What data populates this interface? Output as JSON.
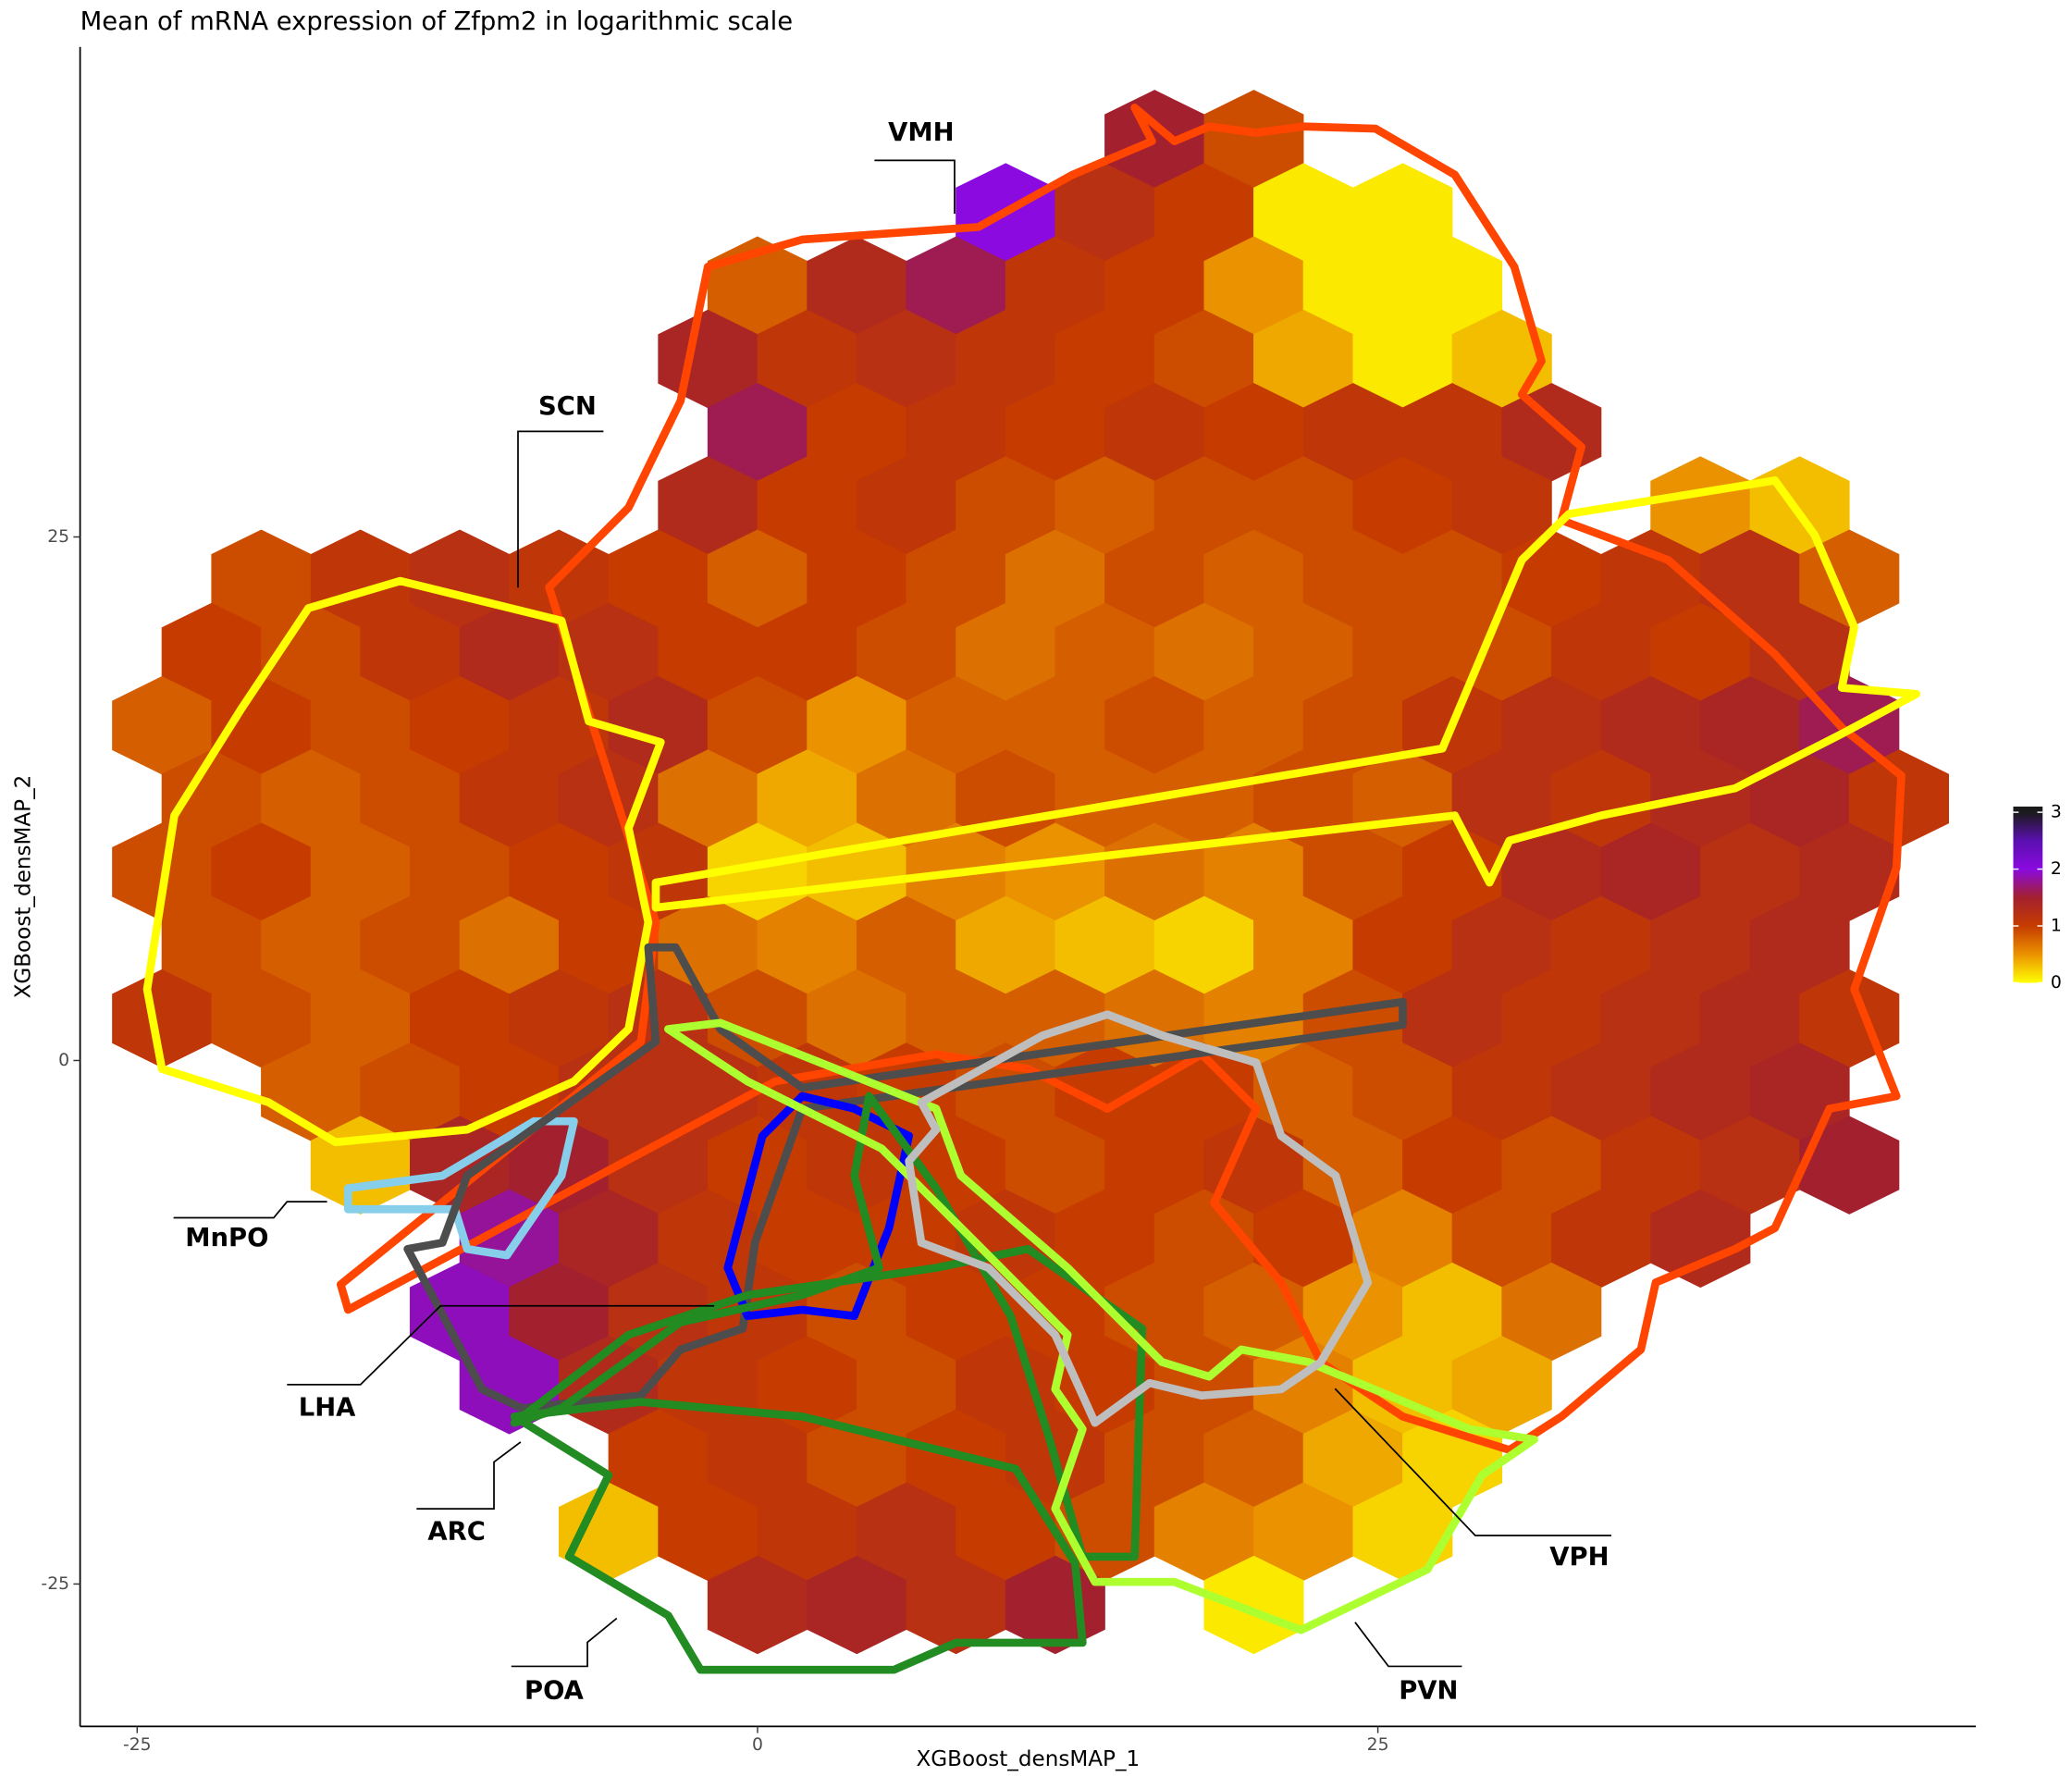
{
  "chart_data": {
    "type": "hexbin",
    "title": "Mean of mRNA expression of Zfpm2 in logarithmic scale",
    "x_label": "XGBoost_densMAP_1",
    "y_label": "XGBoost_densMAP_2",
    "xlim": [
      -27.3,
      49.1
    ],
    "ylim": [
      -31.8,
      48.4
    ],
    "xticks": [
      -25,
      0,
      25
    ],
    "yticks": [
      -25,
      0,
      25
    ],
    "colorscale": [
      [
        0,
        "#ffff00"
      ],
      [
        0.5,
        "#eb9200"
      ],
      [
        1,
        "#c63c00"
      ],
      [
        1.5,
        "#a3202e"
      ],
      [
        2,
        "#8a0ae0"
      ],
      [
        2.5,
        "#5a10b0"
      ],
      [
        3,
        "#1a1a1a"
      ]
    ],
    "colorbar_lim": [
      0,
      3.1
    ],
    "colorbar_ticks": [
      0,
      1,
      2,
      3
    ],
    "rows": [
      {
        "y": 44,
        "x": [
          16,
          20
        ],
        "values": [
          1.5,
          0.9
        ]
      },
      {
        "y": 40.5,
        "x": [
          10,
          14,
          18,
          22,
          26
        ],
        "values": [
          2.0,
          1.2,
          1.0,
          0.1,
          0.1
        ]
      },
      {
        "y": 37,
        "x": [
          0,
          4,
          8,
          12,
          16,
          20,
          24,
          28
        ],
        "values": [
          0.8,
          1.3,
          1.6,
          1.1,
          1.0,
          0.5,
          0.1,
          0.1
        ]
      },
      {
        "y": 33.5,
        "x": [
          -2,
          2,
          6,
          10,
          14,
          18,
          22,
          26,
          30
        ],
        "values": [
          1.4,
          1.1,
          1.2,
          1.1,
          1.0,
          0.9,
          0.4,
          0.1,
          0.3
        ]
      },
      {
        "y": 30,
        "x": [
          0,
          4,
          8,
          12,
          16,
          20,
          24,
          28,
          32
        ],
        "values": [
          1.6,
          1.0,
          1.1,
          1.0,
          1.1,
          1.0,
          1.1,
          1.1,
          1.3
        ]
      },
      {
        "y": 26.5,
        "x": [
          -2,
          2,
          6,
          10,
          14,
          18,
          22,
          26,
          30,
          38,
          42
        ],
        "values": [
          1.3,
          1.0,
          1.1,
          0.9,
          0.8,
          0.9,
          0.9,
          1.0,
          1.1,
          0.5,
          0.3
        ]
      },
      {
        "y": 23,
        "x": [
          -20,
          -16,
          -12,
          -8,
          -4,
          0,
          4,
          8,
          12,
          16,
          20,
          24,
          28,
          32,
          36,
          40,
          44
        ],
        "values": [
          0.9,
          1.1,
          1.2,
          1.1,
          1.0,
          0.8,
          1.0,
          0.9,
          0.7,
          0.9,
          0.8,
          0.9,
          0.9,
          1.0,
          1.1,
          1.2,
          0.8
        ]
      },
      {
        "y": 19.5,
        "x": [
          -22,
          -18,
          -14,
          -10,
          -6,
          -2,
          2,
          6,
          10,
          14,
          18,
          22,
          26,
          30,
          34,
          38,
          42
        ],
        "values": [
          1.0,
          0.9,
          1.1,
          1.3,
          1.2,
          1.0,
          1.0,
          0.9,
          0.7,
          0.8,
          0.7,
          0.8,
          0.9,
          0.9,
          1.1,
          1.0,
          1.2
        ]
      },
      {
        "y": 16,
        "x": [
          -24,
          -20,
          -16,
          -12,
          -8,
          -4,
          0,
          4,
          8,
          12,
          16,
          20,
          24,
          28,
          32,
          36,
          40,
          44
        ],
        "values": [
          0.8,
          1.0,
          0.9,
          1.0,
          1.1,
          1.3,
          0.9,
          0.5,
          0.8,
          0.8,
          0.9,
          0.8,
          0.9,
          1.1,
          1.2,
          1.3,
          1.4,
          1.6
        ]
      },
      {
        "y": 12.5,
        "x": [
          -22,
          -18,
          -14,
          -10,
          -6,
          -2,
          2,
          6,
          10,
          14,
          18,
          22,
          26,
          30,
          34,
          38,
          42,
          46
        ],
        "values": [
          0.9,
          0.8,
          0.9,
          1.1,
          1.2,
          0.7,
          0.4,
          0.7,
          0.9,
          0.8,
          0.8,
          0.9,
          0.8,
          1.2,
          1.1,
          1.3,
          1.4,
          1.1
        ]
      },
      {
        "y": 9,
        "x": [
          -24,
          -20,
          -16,
          -12,
          -8,
          -4,
          0,
          4,
          8,
          12,
          16,
          20,
          24,
          28,
          32,
          36,
          40,
          44
        ],
        "values": [
          0.9,
          1.0,
          0.8,
          0.9,
          1.0,
          1.1,
          0.2,
          0.3,
          0.6,
          0.5,
          0.7,
          0.6,
          0.9,
          1.0,
          1.3,
          1.4,
          1.2,
          1.3
        ]
      },
      {
        "y": 5.5,
        "x": [
          -22,
          -18,
          -14,
          -10,
          -6,
          -2,
          2,
          6,
          10,
          14,
          18,
          22,
          26,
          30,
          34,
          38,
          42
        ],
        "values": [
          0.9,
          0.8,
          0.9,
          0.7,
          1.0,
          0.7,
          0.6,
          0.8,
          0.4,
          0.3,
          0.2,
          0.6,
          1.0,
          1.2,
          1.1,
          1.2,
          1.3
        ]
      },
      {
        "y": 2,
        "x": [
          -24,
          -20,
          -16,
          -12,
          -8,
          -4,
          0,
          4,
          8,
          12,
          16,
          20,
          24,
          28,
          32,
          36,
          40,
          44
        ],
        "values": [
          1.1,
          0.9,
          0.8,
          1.0,
          1.1,
          1.2,
          0.9,
          0.7,
          0.8,
          0.8,
          0.7,
          0.6,
          0.9,
          1.2,
          1.1,
          1.2,
          1.3,
          1.1
        ]
      },
      {
        "y": -1.5,
        "x": [
          -18,
          -14,
          -10,
          -6,
          -2,
          2,
          6,
          10,
          14,
          18,
          22,
          26,
          30,
          34,
          38,
          42
        ],
        "values": [
          0.8,
          0.9,
          1.0,
          1.2,
          1.2,
          1.1,
          1.0,
          0.9,
          1.0,
          1.0,
          0.8,
          0.9,
          1.1,
          1.2,
          1.3,
          1.4
        ]
      },
      {
        "y": -5,
        "x": [
          -16,
          -12,
          -8,
          -4,
          0,
          4,
          8,
          12,
          16,
          20,
          24,
          28,
          32,
          36,
          40,
          44
        ],
        "values": [
          0.3,
          1.4,
          1.5,
          1.2,
          1.0,
          1.1,
          1.0,
          0.9,
          1.0,
          1.1,
          0.8,
          1.0,
          0.9,
          1.1,
          1.2,
          1.5
        ]
      },
      {
        "y": -8.5,
        "x": [
          -10,
          -6,
          -2,
          2,
          6,
          10,
          14,
          18,
          22,
          26,
          30,
          34,
          38
        ],
        "values": [
          1.8,
          1.4,
          1.1,
          1.0,
          1.0,
          1.1,
          1.0,
          0.9,
          1.0,
          0.6,
          0.9,
          1.1,
          1.3
        ]
      },
      {
        "y": -12,
        "x": [
          -12,
          -8,
          -4,
          0,
          4,
          8,
          12,
          16,
          20,
          24,
          28,
          32
        ],
        "values": [
          1.9,
          1.5,
          1.2,
          1.1,
          0.9,
          1.0,
          1.0,
          0.9,
          0.8,
          0.5,
          0.3,
          0.7
        ]
      },
      {
        "y": -15.5,
        "x": [
          -10,
          -6,
          -2,
          2,
          6,
          10,
          14,
          18,
          22,
          26,
          30
        ],
        "values": [
          1.9,
          1.3,
          1.1,
          1.0,
          0.9,
          1.1,
          1.0,
          0.9,
          0.6,
          0.3,
          0.4
        ]
      },
      {
        "y": -19,
        "x": [
          -4,
          0,
          4,
          8,
          12,
          16,
          20,
          24,
          28
        ],
        "values": [
          1.0,
          1.1,
          0.9,
          1.0,
          1.1,
          0.9,
          0.8,
          0.4,
          0.2
        ]
      },
      {
        "y": -22.5,
        "x": [
          -6,
          -2,
          2,
          6,
          10,
          14,
          18,
          22,
          26
        ],
        "values": [
          0.3,
          1.0,
          1.1,
          1.2,
          1.0,
          0.9,
          0.6,
          0.5,
          0.2
        ]
      },
      {
        "y": -26,
        "x": [
          0,
          4,
          8,
          12,
          20
        ],
        "values": [
          1.3,
          1.4,
          1.2,
          1.5,
          0.1
        ]
      }
    ],
    "regions": [
      {
        "name": "VMH",
        "color": "#ff4500",
        "x": [
          15.2,
          16.8,
          18.2,
          20.1,
          22.0,
          24.9,
          28.1,
          30.5,
          31.6,
          30.8,
          33.2,
          32.4,
          36.7,
          41.0,
          43.7,
          46.1,
          45.9,
          44.2,
          45.9,
          43.2,
          41.0,
          39.4,
          36.2,
          35.6,
          32.4,
          30.3,
          26.0,
          22.7,
          21.1,
          18.4,
          20.1,
          17.9,
          14.1,
          10.9,
          7.2,
          0.7,
          -16.5,
          -16.8,
          -4.7,
          -4.1,
          -7.4,
          -8.4,
          -5.2,
          -3.1,
          -2.0,
          1.8,
          8.9,
          12.7,
          15.9
        ],
        "y": [
          45.5,
          43.9,
          44.6,
          44.3,
          44.6,
          44.5,
          42.3,
          37.9,
          33.4,
          31.8,
          29.3,
          25.8,
          23.9,
          19.4,
          15.9,
          13.6,
          9.2,
          3.4,
          -1.7,
          -2.3,
          -8.0,
          -9.0,
          -10.6,
          -13.8,
          -17.0,
          -18.6,
          -17.0,
          -14.4,
          -10.6,
          -6.8,
          -2.3,
          0.3,
          -2.3,
          -0.4,
          0.3,
          -1.0,
          -11.9,
          -10.7,
          0.9,
          6.6,
          18.8,
          22.6,
          26.4,
          31.5,
          37.9,
          39.2,
          39.8,
          42.3,
          43.9
        ]
      },
      {
        "name": "SCN",
        "color": "#ffff00",
        "x": [
          -18.1,
          -14.4,
          -7.9,
          -6.8,
          -3.9,
          -5.2,
          -4.4,
          -5.2,
          -7.4,
          -11.7,
          -17.0,
          -19.7,
          -24.0,
          -24.6,
          -23.5,
          -20.8
        ],
        "y": [
          21.6,
          22.9,
          21.0,
          16.2,
          15.2,
          11.1,
          6.6,
          1.5,
          -1.0,
          -3.3,
          -3.9,
          -2.0,
          -0.4,
          3.4,
          11.7,
          16.8
        ]
      },
      {
        "color": "#ffff00",
        "x": [
          -4.1,
          27.6,
          30.8,
          32.7,
          41.0,
          42.6,
          44.2,
          43.7,
          46.7,
          43.7,
          39.4,
          34.0,
          30.3,
          29.5,
          28.1,
          -4.1
        ],
        "y": [
          8.5,
          14.9,
          23.9,
          26.1,
          27.7,
          25.1,
          20.7,
          17.8,
          17.5,
          15.6,
          13.0,
          11.7,
          10.5,
          8.5,
          11.7,
          7.3
        ]
      },
      {
        "name": "MnPO",
        "color": "#87ceeb",
        "x": [
          -16.5,
          -12.7,
          -9.0,
          -7.4,
          -7.9,
          -10.1,
          -11.7,
          -12.2,
          -16.5
        ],
        "y": [
          -6.1,
          -5.5,
          -2.9,
          -2.9,
          -5.5,
          -9.3,
          -9.0,
          -7.1,
          -7.1
        ]
      },
      {
        "name": "LHA",
        "color": "#4d4d4d",
        "x": [
          -4.4,
          -4.1,
          -11.7,
          -12.7,
          -14.1,
          -11.1,
          -9.5,
          -4.7,
          -3.1,
          -0.6,
          -0.1,
          1.8,
          26.0,
          26.0,
          1.8,
          -1.5,
          -3.3
        ],
        "y": [
          5.4,
          0.9,
          -5.5,
          -8.7,
          -9.0,
          -15.7,
          -16.6,
          -16.0,
          -13.8,
          -12.8,
          -8.7,
          -2.3,
          1.7,
          2.8,
          -1.3,
          1.5,
          5.4
        ]
      },
      {
        "color": "#0000ff",
        "x": [
          -0.4,
          -1.2,
          0.2,
          1.8,
          3.9,
          6.1,
          5.3,
          3.9,
          1.8
        ],
        "y": [
          -12.2,
          -9.9,
          -3.6,
          -1.7,
          -2.3,
          -3.6,
          -8.0,
          -12.2,
          -11.9
        ]
      },
      {
        "name": "ARC",
        "color": "#228b22",
        "x": [
          -9.8,
          -5.2,
          -0.4,
          7.2,
          10.9,
          15.5,
          15.2,
          13.1,
          11.8,
          10.2,
          7.2,
          4.5,
          3.9,
          4.9,
          1.8,
          -3.1,
          -7.9
        ],
        "y": [
          -17.3,
          -13.1,
          -11.2,
          -9.9,
          -9.0,
          -12.8,
          -23.7,
          -23.7,
          -18.2,
          -12.2,
          -6.1,
          -1.7,
          -5.5,
          -9.9,
          -11.2,
          -12.5,
          -16.6
        ]
      },
      {
        "name": "POA",
        "color": "#228b22",
        "x": [
          -9.8,
          -6.0,
          -7.6,
          -3.6,
          -2.3,
          5.5,
          8.0,
          13.1,
          12.8,
          10.4,
          1.8,
          -4.7
        ],
        "y": [
          -17.0,
          -19.8,
          -23.7,
          -26.5,
          -29.1,
          -29.1,
          -27.8,
          -27.8,
          -24.0,
          -19.5,
          -17.0,
          -16.3
        ]
      },
      {
        "name": "PVN",
        "color": "#adff2f",
        "x": [
          -3.6,
          -1.5,
          7.2,
          8.2,
          12.5,
          16.3,
          18.2,
          19.5,
          22.2,
          28.7,
          31.3,
          29.2,
          27.0,
          21.9,
          16.8,
          13.6,
          12.0,
          13.1,
          12.0,
          12.5,
          8.8,
          5.0,
          -0.4
        ],
        "y": [
          1.5,
          1.8,
          -2.3,
          -5.5,
          -9.9,
          -14.4,
          -15.1,
          -13.8,
          -14.4,
          -17.6,
          -18.1,
          -19.8,
          -24.3,
          -27.2,
          -24.9,
          -24.9,
          -21.4,
          -17.6,
          -15.7,
          -13.1,
          -8.7,
          -4.2,
          -1.0
        ]
      },
      {
        "name": "VPH",
        "color": "#bebebe",
        "x": [
          6.6,
          11.5,
          14.1,
          16.3,
          20.1,
          21.1,
          23.3,
          24.6,
          22.7,
          21.1,
          17.9,
          15.8,
          13.6,
          12.0,
          9.3,
          6.6,
          6.1,
          7.2
        ],
        "y": [
          -2.0,
          1.2,
          2.2,
          1.2,
          -0.1,
          -3.6,
          -5.5,
          -10.6,
          -14.4,
          -15.7,
          -16.0,
          -15.4,
          -17.3,
          -13.1,
          -9.9,
          -8.7,
          -4.8,
          -3.3
        ]
      }
    ]
  }
}
